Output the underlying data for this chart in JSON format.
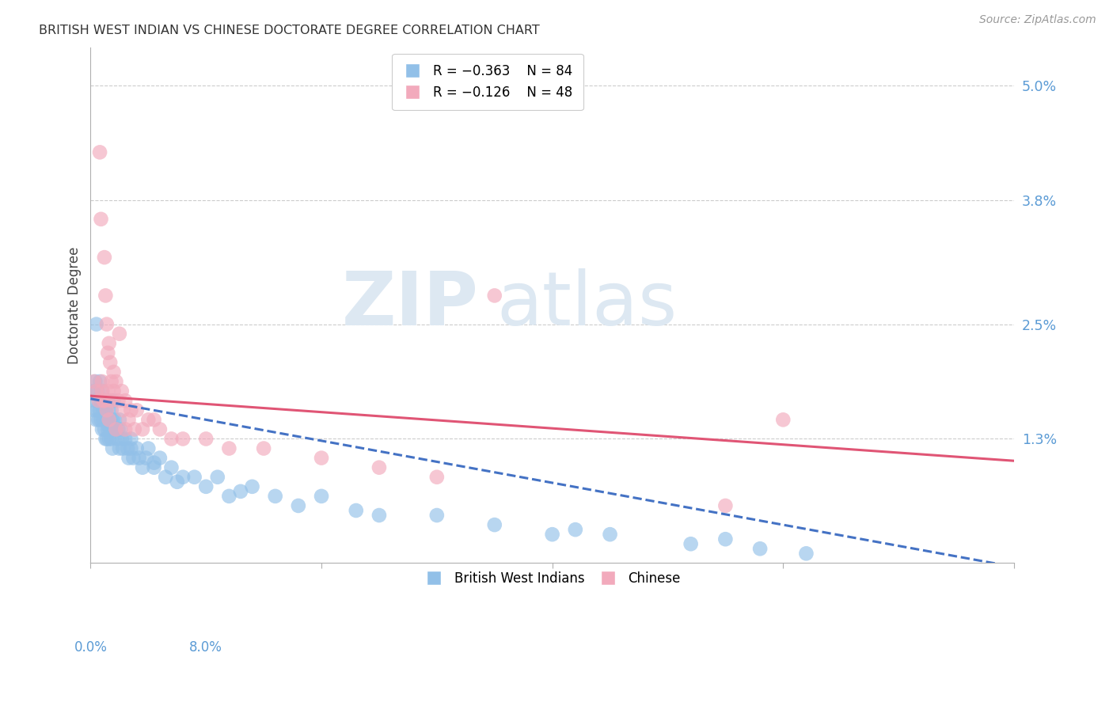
{
  "title": "BRITISH WEST INDIAN VS CHINESE DOCTORATE DEGREE CORRELATION CHART",
  "source": "Source: ZipAtlas.com",
  "ylabel": "Doctorate Degree",
  "right_ytick_vals": [
    5.0,
    3.8,
    2.5,
    1.3
  ],
  "right_ytick_labels": [
    "5.0%",
    "3.8%",
    "2.5%",
    "1.3%"
  ],
  "xlim": [
    0.0,
    8.0
  ],
  "ylim": [
    0.0,
    5.4
  ],
  "color_bwi": "#92C0E8",
  "color_chinese": "#F2AABC",
  "color_bwi_line": "#4472C4",
  "color_chinese_line": "#E05575",
  "tick_color": "#5B9BD5",
  "bwi_x": [
    0.02,
    0.03,
    0.04,
    0.04,
    0.05,
    0.05,
    0.06,
    0.06,
    0.07,
    0.07,
    0.08,
    0.08,
    0.09,
    0.09,
    0.1,
    0.1,
    0.11,
    0.11,
    0.12,
    0.12,
    0.13,
    0.13,
    0.14,
    0.14,
    0.15,
    0.15,
    0.16,
    0.16,
    0.17,
    0.17,
    0.18,
    0.18,
    0.19,
    0.19,
    0.2,
    0.2,
    0.21,
    0.22,
    0.23,
    0.24,
    0.25,
    0.25,
    0.26,
    0.27,
    0.28,
    0.3,
    0.32,
    0.33,
    0.35,
    0.37,
    0.4,
    0.42,
    0.45,
    0.48,
    0.5,
    0.55,
    0.6,
    0.65,
    0.7,
    0.8,
    0.9,
    1.0,
    1.1,
    1.2,
    1.4,
    1.6,
    1.8,
    2.0,
    2.5,
    3.0,
    3.5,
    4.0,
    4.5,
    5.2,
    5.8,
    6.2,
    4.2,
    5.5,
    2.3,
    1.3,
    0.75,
    0.55,
    0.35,
    0.15
  ],
  "bwi_y": [
    1.8,
    1.6,
    1.9,
    1.7,
    2.5,
    1.5,
    1.8,
    1.6,
    1.7,
    1.5,
    1.9,
    1.6,
    1.7,
    1.5,
    1.8,
    1.4,
    1.6,
    1.5,
    1.7,
    1.4,
    1.6,
    1.3,
    1.5,
    1.3,
    1.7,
    1.4,
    1.6,
    1.3,
    1.5,
    1.4,
    1.6,
    1.3,
    1.5,
    1.2,
    1.7,
    1.4,
    1.5,
    1.4,
    1.3,
    1.4,
    1.5,
    1.2,
    1.4,
    1.3,
    1.2,
    1.3,
    1.2,
    1.1,
    1.3,
    1.1,
    1.2,
    1.1,
    1.0,
    1.1,
    1.2,
    1.0,
    1.1,
    0.9,
    1.0,
    0.9,
    0.9,
    0.8,
    0.9,
    0.7,
    0.8,
    0.7,
    0.6,
    0.7,
    0.5,
    0.5,
    0.4,
    0.3,
    0.3,
    0.2,
    0.15,
    0.1,
    0.35,
    0.25,
    0.55,
    0.75,
    0.85,
    1.05,
    1.2,
    1.45
  ],
  "chinese_x": [
    0.03,
    0.05,
    0.07,
    0.08,
    0.09,
    0.1,
    0.11,
    0.12,
    0.13,
    0.14,
    0.15,
    0.15,
    0.16,
    0.17,
    0.18,
    0.18,
    0.2,
    0.2,
    0.22,
    0.24,
    0.25,
    0.27,
    0.28,
    0.3,
    0.33,
    0.35,
    0.38,
    0.4,
    0.45,
    0.5,
    0.55,
    0.6,
    0.7,
    0.8,
    1.0,
    1.2,
    1.5,
    2.0,
    2.5,
    3.0,
    3.5,
    5.5,
    6.0,
    0.1,
    0.12,
    0.14,
    0.16,
    0.22,
    0.3
  ],
  "chinese_y": [
    1.9,
    1.8,
    1.7,
    4.3,
    3.6,
    1.9,
    1.7,
    3.2,
    2.8,
    2.5,
    2.2,
    1.8,
    2.3,
    2.1,
    1.9,
    1.7,
    2.0,
    1.8,
    1.9,
    1.7,
    2.4,
    1.8,
    1.6,
    1.7,
    1.5,
    1.6,
    1.4,
    1.6,
    1.4,
    1.5,
    1.5,
    1.4,
    1.3,
    1.3,
    1.3,
    1.2,
    1.2,
    1.1,
    1.0,
    0.9,
    2.8,
    0.6,
    1.5,
    1.8,
    1.7,
    1.6,
    1.5,
    1.4,
    1.4
  ],
  "bwi_reg": [
    1.72,
    -0.22
  ],
  "chinese_reg": [
    1.75,
    -0.085
  ],
  "x_tick_positions": [
    0,
    2,
    4,
    6,
    8
  ],
  "x_tick_labels_bottom": [
    "0.0%",
    "",
    "",
    "",
    "8.0%"
  ]
}
